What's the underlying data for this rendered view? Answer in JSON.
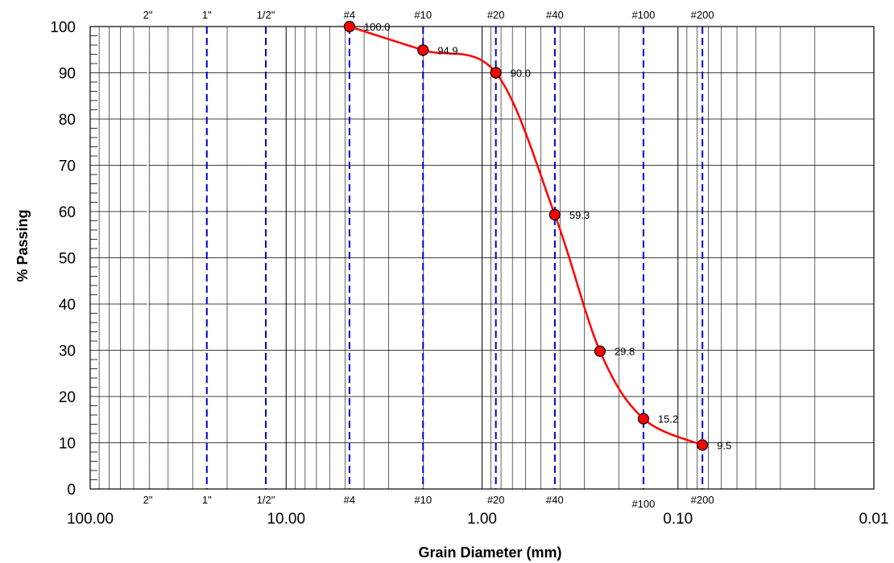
{
  "chart_data": {
    "type": "scatter",
    "title": "",
    "xlabel": "Grain Diameter (mm)",
    "ylabel": "% Passing",
    "x_scale": "log",
    "x_reversed": true,
    "xlim": [
      100,
      0.01
    ],
    "ylim": [
      0,
      100
    ],
    "x_tick_labels": [
      "100.00",
      "10.00",
      "1.00",
      "0.10",
      "0.01"
    ],
    "x_tick_values": [
      100,
      10,
      1,
      0.1,
      0.01
    ],
    "y_ticks": [
      0,
      10,
      20,
      30,
      40,
      50,
      60,
      70,
      80,
      90,
      100
    ],
    "grid": true,
    "legend": "none",
    "sieves": [
      {
        "label": "2\"",
        "size": 50.8,
        "dash": "long-dash",
        "color": "#ffffff"
      },
      {
        "label": "1\"",
        "size": 25.4,
        "dash": "dash",
        "color": "#0000cc"
      },
      {
        "label": "1/2\"",
        "size": 12.7,
        "dash": "dash",
        "color": "#0000cc"
      },
      {
        "label": "#4",
        "size": 4.75,
        "dash": "dash",
        "color": "#0000cc"
      },
      {
        "label": "#10",
        "size": 2.0,
        "dash": "dash",
        "color": "#0000cc"
      },
      {
        "label": "#20",
        "size": 0.85,
        "dash": "dash",
        "color": "#0000cc"
      },
      {
        "label": "#40",
        "size": 0.425,
        "dash": "dash",
        "color": "#0000cc"
      },
      {
        "label": "#100",
        "size": 0.15,
        "dash": "dash",
        "color": "#0000cc"
      },
      {
        "label": "#200",
        "size": 0.075,
        "dash": "dash",
        "color": "#0000cc"
      }
    ],
    "series": [
      {
        "x": [
          4.75,
          2.0,
          0.85,
          0.425,
          0.25,
          0.15,
          0.075
        ],
        "y": [
          100.0,
          94.9,
          90.0,
          59.3,
          29.8,
          15.2,
          9.5
        ],
        "labels": [
          "100.0",
          "94.9",
          "90.0",
          "59.3",
          "29.8",
          "15.2",
          "9.5"
        ],
        "color": "#ff0000"
      }
    ],
    "colors": {
      "curve": "#ff0000",
      "marker": "#ff0000",
      "sieve_line": "#0000cc",
      "grid": "#000000"
    }
  }
}
